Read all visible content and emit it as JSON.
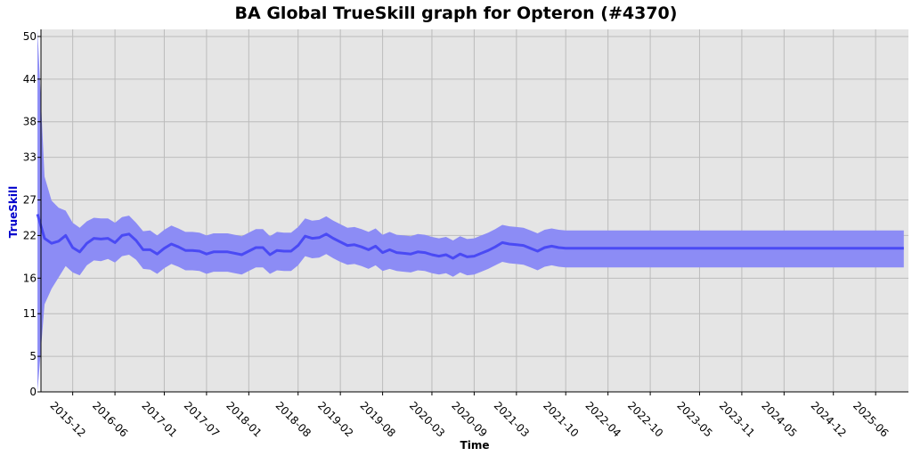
{
  "chart_data": {
    "type": "line",
    "title": "BA Global TrueSkill graph for Opteron (#4370)",
    "xlabel": "Time",
    "ylabel": "TrueSkill",
    "ylim": [
      0,
      51
    ],
    "yticks": [
      0,
      5,
      11,
      16,
      22,
      27,
      33,
      38,
      44,
      50
    ],
    "xticks": [
      "2015-12",
      "2016-06",
      "2017-01",
      "2017-07",
      "2018-01",
      "2018-08",
      "2019-02",
      "2019-08",
      "2020-03",
      "2020-09",
      "2021-03",
      "2021-10",
      "2022-04",
      "2022-10",
      "2023-05",
      "2023-11",
      "2024-05",
      "2024-12",
      "2025-06"
    ],
    "grid": true,
    "colors": {
      "line": "#4a4af4",
      "band": "#8c8cf5",
      "background": "#e5e5e5",
      "grid": "#bcbcbc",
      "ylabel": "#0000cc"
    },
    "series": [
      {
        "x": [
          "2015-07",
          "2015-08",
          "2015-09",
          "2015-10",
          "2015-11",
          "2015-12",
          "2016-01",
          "2016-02",
          "2016-03",
          "2016-04",
          "2016-05",
          "2016-06",
          "2016-07",
          "2016-08",
          "2016-09",
          "2016-10",
          "2016-11",
          "2016-12",
          "2017-01",
          "2017-02",
          "2017-03",
          "2017-04",
          "2017-05",
          "2017-06",
          "2017-07",
          "2017-08",
          "2017-09",
          "2017-10",
          "2017-11",
          "2017-12",
          "2018-01",
          "2018-02",
          "2018-03",
          "2018-04",
          "2018-05",
          "2018-06",
          "2018-07",
          "2018-08",
          "2018-09",
          "2018-10",
          "2018-11",
          "2018-12",
          "2019-01",
          "2019-02",
          "2019-03",
          "2019-04",
          "2019-05",
          "2019-06",
          "2019-07",
          "2019-08",
          "2019-09",
          "2019-10",
          "2019-11",
          "2019-12",
          "2020-01",
          "2020-02",
          "2020-03",
          "2020-04",
          "2020-05",
          "2020-06",
          "2020-07",
          "2020-08",
          "2020-09",
          "2020-10",
          "2020-11",
          "2020-12",
          "2021-01",
          "2021-02",
          "2021-03",
          "2021-04",
          "2021-05",
          "2021-06",
          "2021-07",
          "2021-08",
          "2021-09",
          "2021-10",
          "2021-11",
          "2025-10"
        ],
        "mean": [
          25.0,
          21.6,
          20.9,
          21.2,
          22.0,
          20.3,
          19.7,
          20.9,
          21.6,
          21.5,
          21.6,
          21.0,
          22.0,
          22.2,
          21.3,
          20.0,
          20.0,
          19.4,
          20.2,
          20.8,
          20.4,
          19.9,
          19.9,
          19.8,
          19.4,
          19.7,
          19.7,
          19.7,
          19.5,
          19.3,
          19.8,
          20.3,
          20.3,
          19.3,
          19.9,
          19.8,
          19.8,
          20.6,
          21.9,
          21.6,
          21.7,
          22.2,
          21.6,
          21.1,
          20.6,
          20.7,
          20.4,
          20.0,
          20.5,
          19.6,
          20.0,
          19.6,
          19.5,
          19.4,
          19.7,
          19.6,
          19.3,
          19.1,
          19.3,
          18.8,
          19.4,
          19.0,
          19.1,
          19.5,
          19.9,
          20.4,
          21.0,
          20.8,
          20.7,
          20.6,
          20.2,
          19.8,
          20.3,
          20.5,
          20.3,
          20.2,
          20.2,
          20.2
        ],
        "lower": [
          0.0,
          12.3,
          14.5,
          16.1,
          17.7,
          16.8,
          16.4,
          17.8,
          18.5,
          18.4,
          18.7,
          18.2,
          19.1,
          19.3,
          18.6,
          17.3,
          17.2,
          16.6,
          17.4,
          18.0,
          17.6,
          17.1,
          17.1,
          17.0,
          16.6,
          16.9,
          16.9,
          16.9,
          16.7,
          16.5,
          17.0,
          17.5,
          17.5,
          16.6,
          17.1,
          17.0,
          17.0,
          17.8,
          19.1,
          18.8,
          18.9,
          19.4,
          18.8,
          18.3,
          17.9,
          18.0,
          17.7,
          17.3,
          17.8,
          17.0,
          17.3,
          17.0,
          16.9,
          16.8,
          17.1,
          17.0,
          16.7,
          16.5,
          16.7,
          16.2,
          16.8,
          16.4,
          16.5,
          16.9,
          17.3,
          17.8,
          18.3,
          18.1,
          18.0,
          17.9,
          17.5,
          17.1,
          17.6,
          17.8,
          17.6,
          17.5,
          17.5,
          17.5
        ],
        "upper": [
          51.0,
          30.3,
          26.9,
          25.9,
          25.5,
          23.8,
          23.1,
          24.0,
          24.5,
          24.4,
          24.4,
          23.8,
          24.6,
          24.8,
          23.8,
          22.6,
          22.7,
          22.0,
          22.8,
          23.4,
          23.0,
          22.5,
          22.5,
          22.4,
          22.0,
          22.3,
          22.3,
          22.3,
          22.1,
          21.9,
          22.4,
          22.9,
          22.9,
          21.9,
          22.5,
          22.4,
          22.4,
          23.2,
          24.4,
          24.1,
          24.2,
          24.7,
          24.1,
          23.6,
          23.1,
          23.2,
          22.9,
          22.5,
          23.0,
          22.1,
          22.5,
          22.1,
          22.0,
          21.9,
          22.2,
          22.1,
          21.8,
          21.6,
          21.8,
          21.3,
          21.9,
          21.5,
          21.6,
          22.0,
          22.4,
          22.9,
          23.5,
          23.3,
          23.2,
          23.1,
          22.7,
          22.3,
          22.8,
          23.0,
          22.8,
          22.7,
          22.7,
          22.7
        ]
      }
    ]
  }
}
